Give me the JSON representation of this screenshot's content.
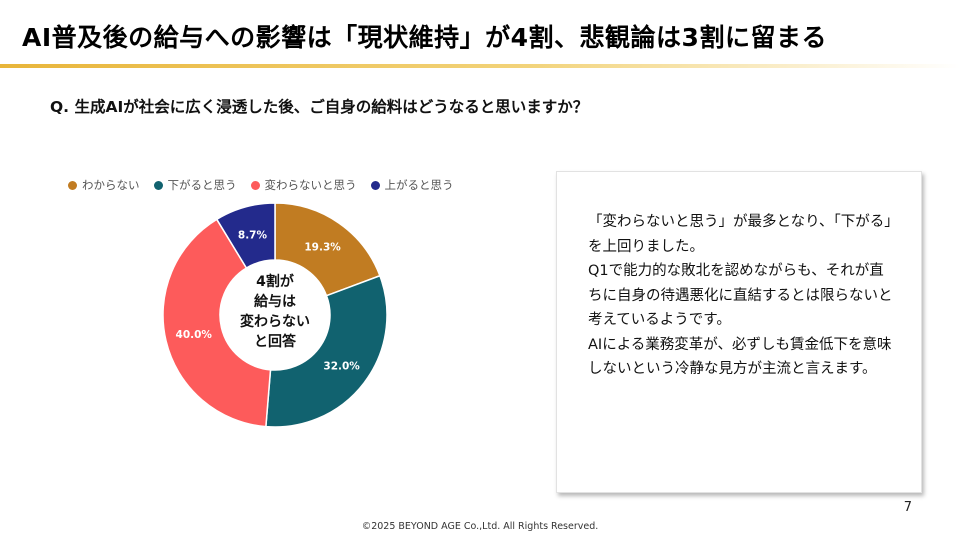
{
  "slide": {
    "title": "AI普及後の給与への影響は「現状維持」が4割、悲観論は3割に留まる",
    "question": "Q. 生成AIが社会に広く浸透した後、ご自身の給料はどうなると思いますか？",
    "page_number": "7",
    "footer": "©2025 BEYOND AGE Co.,Ltd. All Rights Reserved."
  },
  "chart_data": {
    "type": "pie",
    "donut": true,
    "legend_position": "top",
    "center_label": [
      "4割が",
      "給与は",
      "変わらない",
      "と回答"
    ],
    "slices": [
      {
        "name": "わからない",
        "value": 19.3,
        "label": "19.3%",
        "color": "#c17c22"
      },
      {
        "name": "下がると思う",
        "value": 32.0,
        "label": "32.0%",
        "color": "#11626f"
      },
      {
        "name": "変わらないと思う",
        "value": 40.0,
        "label": "40.0%",
        "color": "#fd5b5b"
      },
      {
        "name": "上がると思う",
        "value": 8.7,
        "label": "8.7%",
        "color": "#232a8c"
      }
    ]
  },
  "comment": {
    "paragraphs": [
      "「変わらないと思う」が最多となり、「下がる」を上回りました。",
      "Q1で能力的な敗北を認めながらも、それが直ちに自身の待遇悪化に直結するとは限らないと考えているようです。",
      "AIによる業務変革が、必ずしも賃金低下を意味しないという冷静な見方が主流と言えます。"
    ]
  },
  "colors": {
    "title_rule": "#e8b53a",
    "box_border": "#e2e2e2"
  }
}
